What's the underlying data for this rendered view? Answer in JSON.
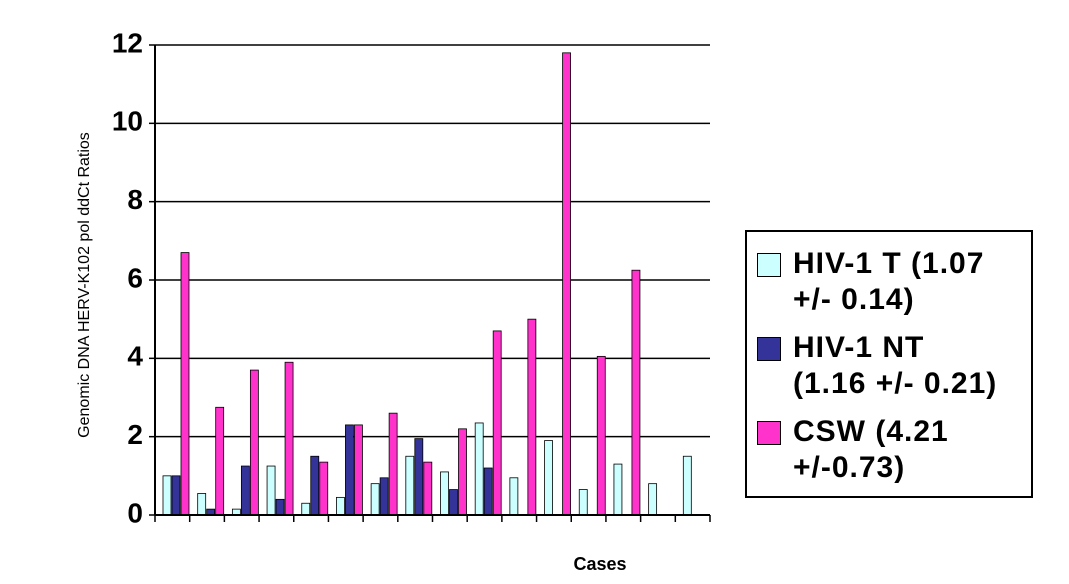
{
  "chart_data": {
    "type": "bar",
    "y_label": "Genomic DNA HERV-K102 pol ddCt Ratios",
    "x_label": "Cases",
    "categories": [
      null,
      null,
      null,
      null,
      null,
      null,
      null,
      null,
      null,
      null,
      null,
      null,
      null,
      null,
      null,
      null
    ],
    "series": [
      {
        "name": "HIV-1 T (1.07 +/- 0.14)",
        "color": "#ccffff",
        "values": [
          1.0,
          0.55,
          0.15,
          1.25,
          0.3,
          0.45,
          0.8,
          1.5,
          1.1,
          2.35,
          0.95,
          1.9,
          0.65,
          1.3,
          0.8,
          1.5
        ]
      },
      {
        "name": "HIV-1 NT (1.16 +/- 0.21)",
        "color": "#333399",
        "values": [
          1.0,
          0.15,
          1.25,
          0.4,
          1.5,
          2.3,
          0.95,
          1.95,
          0.65,
          1.2,
          0,
          0,
          0,
          0,
          0,
          0
        ]
      },
      {
        "name": "CSW (4.21 +/-0.73)",
        "color": "#ff33cc",
        "values": [
          6.7,
          2.75,
          3.7,
          3.9,
          1.35,
          2.3,
          2.6,
          1.35,
          2.2,
          4.7,
          5.0,
          11.8,
          4.05,
          6.25,
          0,
          0
        ]
      }
    ],
    "ylim": [
      0,
      12
    ],
    "yticks": [
      0,
      2,
      4,
      6,
      8,
      10,
      12
    ],
    "grid": true
  }
}
